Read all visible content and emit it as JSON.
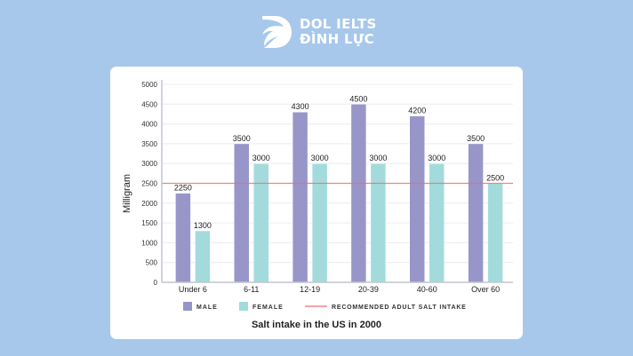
{
  "brand": {
    "line1": "DOL IELTS",
    "line2": "ĐÌNH LỰC"
  },
  "colors": {
    "background": "#a7c8ea",
    "male": "#9896c8",
    "female": "#a3dbdc",
    "reference": "#f06a6a"
  },
  "chart_data": {
    "type": "bar",
    "title": "Salt intake in the US in 2000",
    "xlabel": "",
    "ylabel": "Milligram",
    "ylim": [
      0,
      5000
    ],
    "yticks": [
      0,
      500,
      1000,
      1500,
      2000,
      2500,
      3000,
      3500,
      4000,
      4500,
      5000
    ],
    "grid": true,
    "legend_position": "bottom",
    "categories": [
      "Under 6",
      "6-11",
      "12-19",
      "20-39",
      "40-60",
      "Over 60"
    ],
    "series": [
      {
        "name": "MALE",
        "values": [
          2250,
          3500,
          4300,
          4500,
          4200,
          3500
        ]
      },
      {
        "name": "FEMALE",
        "values": [
          1300,
          3000,
          3000,
          3000,
          3000,
          2500
        ]
      }
    ],
    "reference_line": {
      "name": "RECOMMENDED ADULT SALT INTAKE",
      "value": 2500
    }
  }
}
